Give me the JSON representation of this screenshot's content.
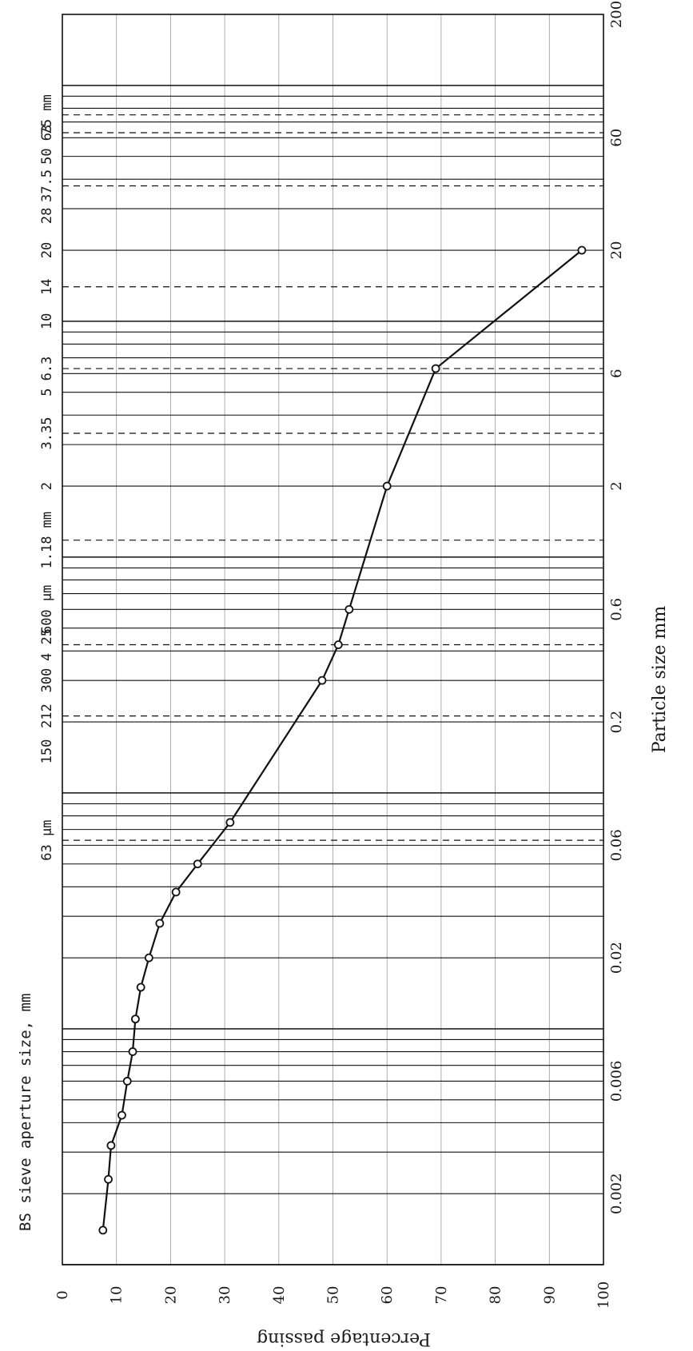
{
  "chart_data": {
    "type": "line",
    "title": "BS sieve aperture size, mm",
    "xlabel": "Particle size mm",
    "ylabel": "Percentage passing",
    "x_scale": "log",
    "xlim": [
      0.001,
      200
    ],
    "ylim": [
      0,
      100
    ],
    "grid": true,
    "y_ticks": [
      "0",
      "10",
      "20",
      "30",
      "40",
      "50",
      "60",
      "70",
      "80",
      "90",
      "100"
    ],
    "x_ticks": [
      "0.002",
      "0.006",
      "0.02",
      "0.06",
      "0.2",
      "0.6",
      "2",
      "6",
      "20",
      "60",
      "200"
    ],
    "sieve_labels": [
      {
        "text": "63 μm",
        "x": 0.063
      },
      {
        "text": "150",
        "x": 0.15
      },
      {
        "text": "212",
        "x": 0.212
      },
      {
        "text": "300",
        "x": 0.3
      },
      {
        "text": "4 25",
        "x": 0.425
      },
      {
        "text": "600 μm",
        "x": 0.6
      },
      {
        "text": "1.18 mm",
        "x": 1.18
      },
      {
        "text": "2",
        "x": 2
      },
      {
        "text": "3.35",
        "x": 3.35
      },
      {
        "text": "5",
        "x": 5
      },
      {
        "text": "6.3",
        "x": 6.3
      },
      {
        "text": "10",
        "x": 10
      },
      {
        "text": "14",
        "x": 14
      },
      {
        "text": "20",
        "x": 20
      },
      {
        "text": "28",
        "x": 28
      },
      {
        "text": "37.5",
        "x": 37.5
      },
      {
        "text": "50",
        "x": 50
      },
      {
        "text": "63",
        "x": 63
      },
      {
        "text": "75 mm",
        "x": 75
      }
    ],
    "dashed_sieves": [
      0.063,
      0.212,
      0.425,
      1.18,
      3.35,
      6.3,
      14,
      37.5,
      63,
      75
    ],
    "series": [
      {
        "x": [
          20,
          6.3,
          2,
          0.6,
          0.425,
          0.3,
          0.075,
          0.05,
          0.038,
          0.028,
          0.02,
          0.015,
          0.011,
          0.008,
          0.006,
          0.0043,
          0.0032,
          0.0023,
          0.0014
        ],
        "y": [
          96,
          69,
          60,
          53,
          51,
          48,
          31,
          25,
          21,
          18,
          16,
          14.5,
          13.5,
          13,
          12,
          11,
          9,
          8.5,
          7.5
        ]
      }
    ]
  }
}
